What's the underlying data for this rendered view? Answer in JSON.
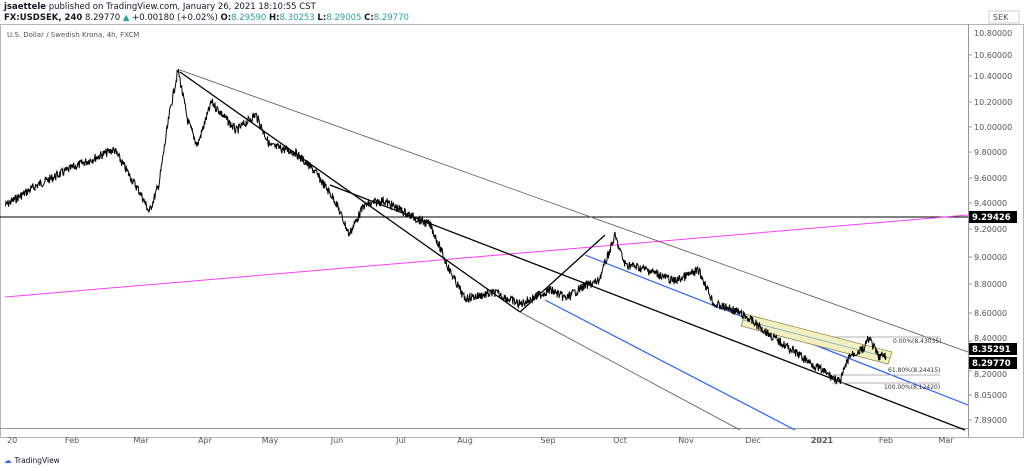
{
  "header": {
    "publisher": "jsaettele",
    "published_text": "published on TradingView.com, January 26, 2021 18:10:55 CST",
    "symbol": "FX:USDSEK, 240",
    "last": "8.29770",
    "change": "+0.00180 (+0.02%)",
    "o_label": "O:",
    "o": "8.29590",
    "h_label": "H:",
    "h": "8.30253",
    "l_label": "L:",
    "l": "8.29005",
    "c_label": "C:",
    "c": "8.29770"
  },
  "legend": "U.S. Dollar / Swedish Krona, 4h, FXCM",
  "currency": "SEK",
  "footer": {
    "brand": "TradingView"
  },
  "colors": {
    "up": "#26a69a",
    "pink": "#ff40ff",
    "blue": "#2962ff",
    "band": "#f3f0c0"
  },
  "chart_data": {
    "type": "line",
    "title": "U.S. Dollar / Swedish Krona, 4h, FXCM",
    "x_ticks": [
      "20",
      "Feb",
      "Mar",
      "Apr",
      "May",
      "Jun",
      "Jul",
      "Aug",
      "Sep",
      "Oct",
      "Nov",
      "Dec",
      "2021",
      "Feb",
      "Mar"
    ],
    "y_ticks": [
      "10.60000",
      "10.40000",
      "10.20000",
      "10.00000",
      "9.80000",
      "9.60000",
      "9.40000",
      "9.20000",
      "9.00000",
      "8.80000",
      "8.60000",
      "8.40000",
      "8.20000",
      "8.05000",
      "7.89000"
    ],
    "y_tick_values": [
      10.6,
      10.4,
      10.2,
      10.0,
      9.8,
      9.6,
      9.4,
      9.2,
      9.0,
      8.8,
      8.6,
      8.4,
      8.2,
      8.05,
      7.89
    ],
    "top_label_partial": "10.80000",
    "price_labels": {
      "horizontal": "9.29426",
      "upper": "8.35291",
      "last": "8.29770"
    },
    "fib_labels": [
      "0.00%(8.43035)",
      "61.80%(8.24415)",
      "100.00%(8.12420)"
    ],
    "series": [
      {
        "name": "USDSEK",
        "x_unit": "months since Jan 2020",
        "points": [
          [
            -0.03,
            9.38
          ],
          [
            0.49,
            9.55
          ],
          [
            1.01,
            9.68
          ],
          [
            1.61,
            9.82
          ],
          [
            1.99,
            9.48
          ],
          [
            2.13,
            9.33
          ],
          [
            2.28,
            9.55
          ],
          [
            2.46,
            10.15
          ],
          [
            2.58,
            10.45
          ],
          [
            2.73,
            10.05
          ],
          [
            2.88,
            9.85
          ],
          [
            3.1,
            10.2
          ],
          [
            3.48,
            9.97
          ],
          [
            3.78,
            10.1
          ],
          [
            4.0,
            9.85
          ],
          [
            4.37,
            9.8
          ],
          [
            4.67,
            9.65
          ],
          [
            4.97,
            9.42
          ],
          [
            5.19,
            9.16
          ],
          [
            5.42,
            9.38
          ],
          [
            5.72,
            9.42
          ],
          [
            6.16,
            9.3
          ],
          [
            6.46,
            9.23
          ],
          [
            6.76,
            8.9
          ],
          [
            6.99,
            8.7
          ],
          [
            7.36,
            8.74
          ],
          [
            7.66,
            8.66
          ],
          [
            8.03,
            8.76
          ],
          [
            8.25,
            8.7
          ],
          [
            8.48,
            8.78
          ],
          [
            8.7,
            8.82
          ],
          [
            8.93,
            9.15
          ],
          [
            9.07,
            8.95
          ],
          [
            9.45,
            8.9
          ],
          [
            9.82,
            8.82
          ],
          [
            10.19,
            8.9
          ],
          [
            10.42,
            8.66
          ],
          [
            10.72,
            8.62
          ],
          [
            10.94,
            8.56
          ],
          [
            11.31,
            8.42
          ],
          [
            11.69,
            8.3
          ],
          [
            11.91,
            8.23
          ],
          [
            12.13,
            8.17
          ],
          [
            12.28,
            8.13
          ],
          [
            12.43,
            8.3
          ],
          [
            12.66,
            8.35
          ],
          [
            12.73,
            8.42
          ],
          [
            12.88,
            8.3
          ],
          [
            13.0,
            8.2977
          ]
        ]
      }
    ]
  }
}
